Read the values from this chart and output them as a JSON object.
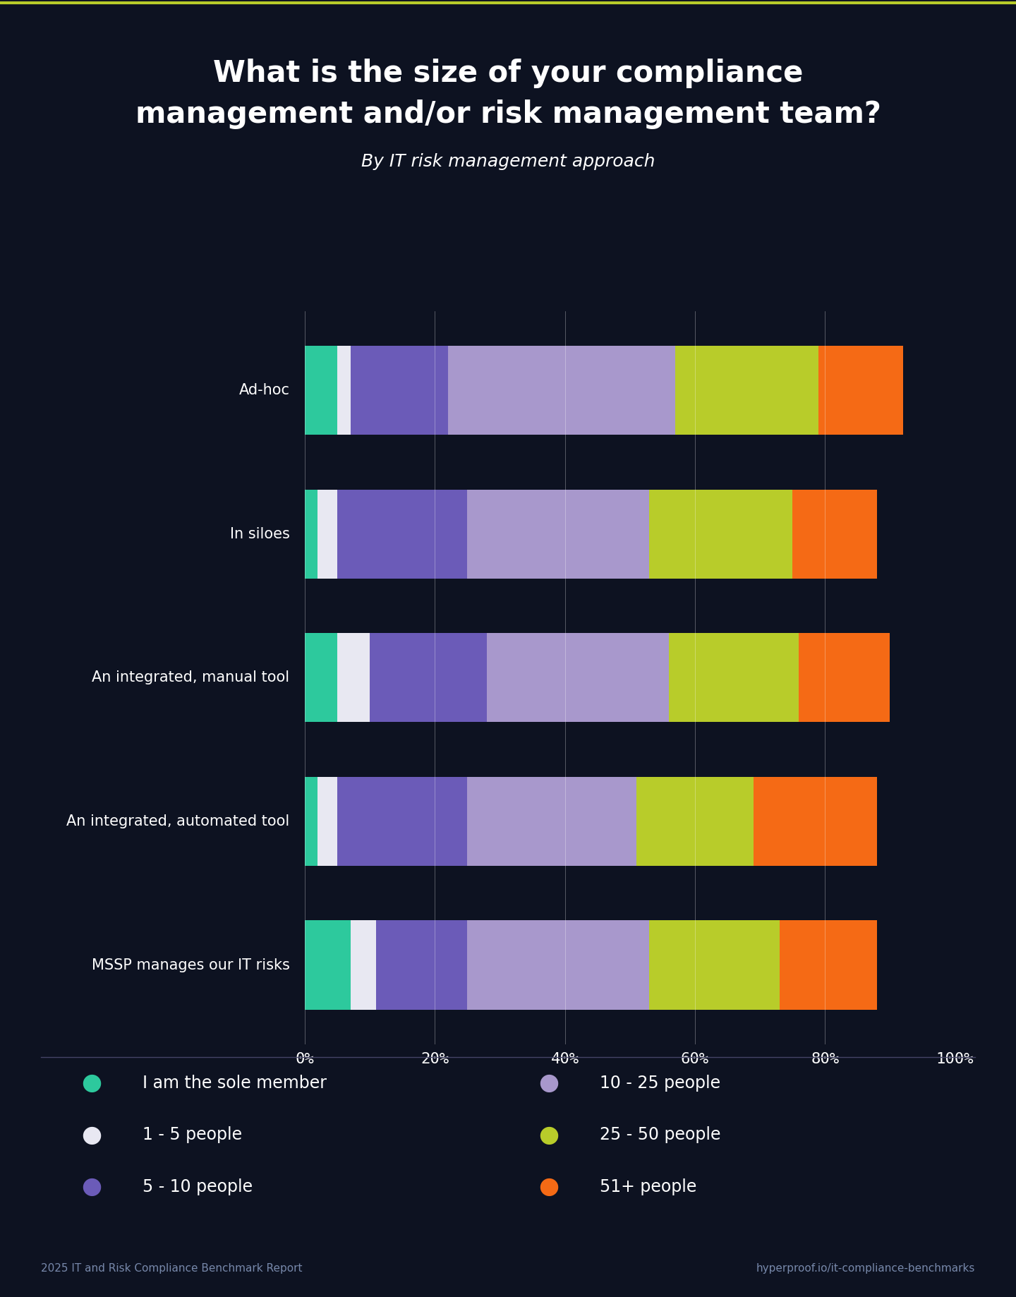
{
  "title": "What is the size of your compliance\nmanagement and/or risk management team?",
  "subtitle": "By IT risk management approach",
  "categories": [
    "Ad-hoc",
    "In siloes",
    "An integrated, manual tool",
    "An integrated, automated tool",
    "MSSP manages our IT risks"
  ],
  "legend_labels": [
    "I am the sole member",
    "1 - 5 people",
    "5 - 10 people",
    "10 - 25 people",
    "25 - 50 people",
    "51+ people"
  ],
  "colors": [
    "#2dc99d",
    "#e8e8f2",
    "#6b5bb8",
    "#a898cc",
    "#b8cc2a",
    "#f56a15"
  ],
  "data": [
    [
      5,
      2,
      15,
      35,
      22,
      13
    ],
    [
      2,
      3,
      20,
      28,
      22,
      13
    ],
    [
      5,
      5,
      18,
      28,
      20,
      14
    ],
    [
      2,
      3,
      20,
      26,
      18,
      19
    ],
    [
      7,
      4,
      14,
      28,
      20,
      15
    ]
  ],
  "background_color": "#0d1221",
  "text_color": "#ffffff",
  "footer_left": "2025 IT and Risk Compliance Benchmark Report",
  "footer_right": "hyperproof.io/it-compliance-benchmarks",
  "bar_height": 0.62,
  "xlim": [
    0,
    100
  ],
  "grid_color": "#ffffff",
  "gap_color": "#0d1221"
}
